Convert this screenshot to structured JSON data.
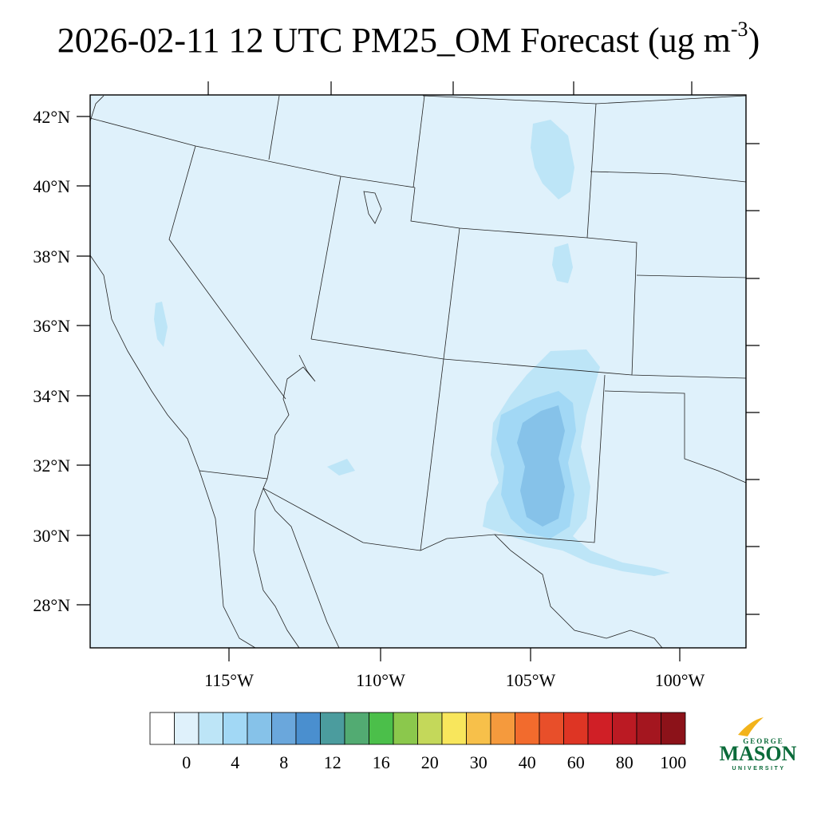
{
  "title": {
    "main": "2026-02-11 12 UTC PM25_OM Forecast (ug m",
    "superscript": "-3",
    "close": ")"
  },
  "map": {
    "background_color": "#dff1fb",
    "lat_labels": [
      "42°N",
      "40°N",
      "38°N",
      "36°N",
      "34°N",
      "32°N",
      "30°N",
      "28°N"
    ],
    "lon_labels": [
      "115°W",
      "110°W",
      "105°W",
      "100°W"
    ]
  },
  "colorbar": {
    "tick_labels": [
      "0",
      "4",
      "8",
      "12",
      "16",
      "20",
      "30",
      "40",
      "60",
      "80",
      "100"
    ],
    "colors": [
      "#ffffff",
      "#dff1fb",
      "#bde5f7",
      "#a2d8f5",
      "#86c2e9",
      "#6aa7dc",
      "#4a8fcf",
      "#4b9c9e",
      "#52ab72",
      "#4bbf4a",
      "#8bc84c",
      "#c4d85a",
      "#f8e65c",
      "#f7c04a",
      "#f59a3d",
      "#f26b2d",
      "#e84f2a",
      "#de3524",
      "#d01f26",
      "#bb1a23",
      "#a4161f",
      "#8c1219"
    ]
  },
  "logo": {
    "line1": "GEORGE",
    "line2": "MASON",
    "line3": "UNIVERSITY",
    "green": "#0b6b3a",
    "gold": "#f2b31b"
  }
}
